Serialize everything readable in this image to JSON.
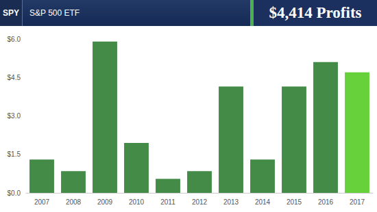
{
  "chart_data": {
    "type": "bar",
    "title": "S&P 500 ETF",
    "annotations": [
      "SPY",
      "$4,414 Profits"
    ],
    "categories": [
      "2007",
      "2008",
      "2009",
      "2010",
      "2011",
      "2012",
      "2013",
      "2014",
      "2015",
      "2016",
      "2017"
    ],
    "values": [
      1.3,
      0.85,
      5.9,
      1.95,
      0.55,
      0.85,
      4.15,
      1.3,
      4.15,
      5.1,
      4.7
    ],
    "colors": [
      "#458b48",
      "#458b48",
      "#458b48",
      "#458b48",
      "#458b48",
      "#458b48",
      "#458b48",
      "#458b48",
      "#458b48",
      "#458b48",
      "#66d13a"
    ],
    "ylim": [
      0,
      6
    ],
    "yticks": [
      {
        "value": 0,
        "label": "$0.0"
      },
      {
        "value": 1.5,
        "label": "$1.5"
      },
      {
        "value": 3,
        "label": "$3.0"
      },
      {
        "value": 4.5,
        "label": "$4.5"
      },
      {
        "value": 6,
        "label": "$6.0"
      }
    ],
    "grid": false
  }
}
